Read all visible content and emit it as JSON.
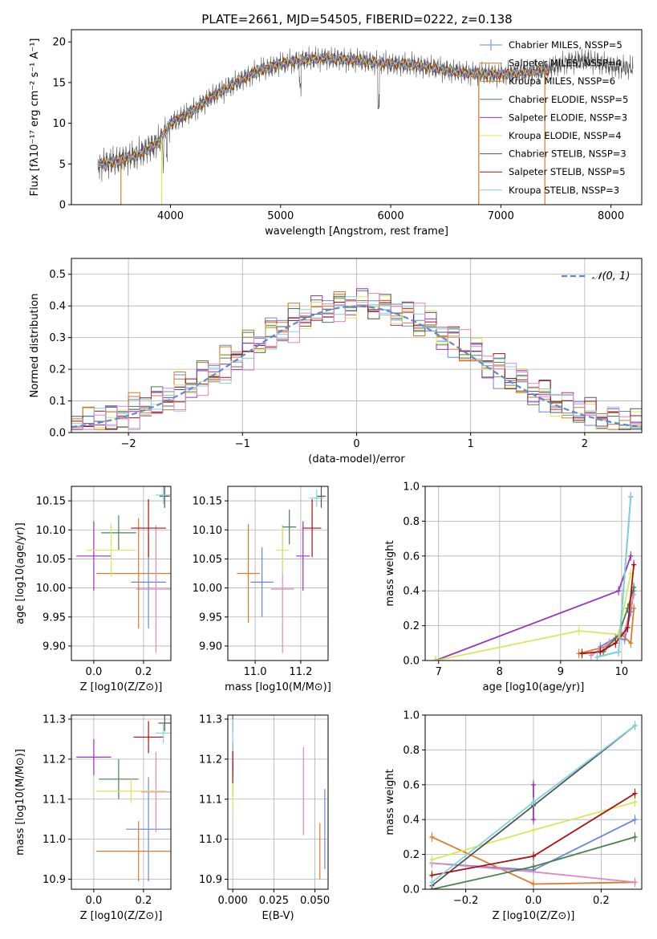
{
  "title": "PLATE=2661, MJD=54505, FIBERID=0222, z=0.138",
  "colors": {
    "Chabrier MILES": "#6688dd",
    "Salpeter MILES": "#e07a2a",
    "Kroupa MILES": "#c07a20",
    "Chabrier ELODIE": "#4a8050",
    "Salpeter ELODIE": "#9933bb",
    "Kroupa ELODIE": "#d8e85a",
    "Chabrier STELIB": "#555555",
    "Salpeter STELIB": "#aa1111",
    "Kroupa STELIB": "#7fd4e0",
    "extra_pink": "#e088c0",
    "gauss": "#5b8ad8"
  },
  "chart_data": [
    {
      "type": "line",
      "xlabel": "wavelength [Angstrom, rest frame]",
      "ylabel": "Flux [fλ10⁻¹⁷ erg cm⁻² s⁻¹ A⁻¹]",
      "xlim": [
        3100,
        8280
      ],
      "ylim": [
        0,
        21.5
      ],
      "xticks": [
        "4000",
        "5000",
        "6000",
        "7000",
        "8000"
      ],
      "yticks": [
        "0",
        "5",
        "10",
        "15",
        "20"
      ],
      "legend": [
        "Chabrier MILES, NSSP=5",
        "Salpeter MILES, NSSP=4",
        "Kroupa MILES, NSSP=6",
        "Chabrier ELODIE, NSSP=5",
        "Salpeter ELODIE, NSSP=3",
        "Kroupa ELODIE, NSSP=4",
        "Chabrier STELIB, NSSP=3",
        "Salpeter STELIB, NSSP=5",
        "Kroupa STELIB, NSSP=3"
      ],
      "legend_placement": "upper right",
      "series_envelope": {
        "x": [
          3340,
          3500,
          3700,
          3900,
          4000,
          4200,
          4400,
          4600,
          4800,
          5000,
          5200,
          5400,
          5600,
          5800,
          6000,
          6200,
          6400,
          6600,
          6800,
          7000,
          7200,
          7400,
          7600,
          7800,
          8000,
          8200
        ],
        "y": [
          4.9,
          5.3,
          6.1,
          7.8,
          10.0,
          11.5,
          13.5,
          15.0,
          16.5,
          17.3,
          17.8,
          18.0,
          17.8,
          17.6,
          17.3,
          17.2,
          16.8,
          16.3,
          16.1,
          16.0,
          16.2,
          16.5,
          17.5,
          17.8,
          17.0,
          16.8
        ]
      }
    },
    {
      "type": "bar",
      "xlabel": "(data-model)/error",
      "ylabel": "Normed distribution",
      "xlim": [
        -2.5,
        2.5
      ],
      "ylim": [
        0,
        0.55
      ],
      "xticks": [
        "−2",
        "−1",
        "0",
        "1",
        "2"
      ],
      "yticks": [
        "0.0",
        "0.1",
        "0.2",
        "0.3",
        "0.4",
        "0.5"
      ],
      "legend": [
        "𝒩(0, 1)"
      ],
      "grid": true
    },
    {
      "type": "scatter",
      "xlabel": "Z [log10(Z/Z⊙)]",
      "ylabel": "age  [log10(age/yr)]",
      "xlim": [
        -0.09,
        0.31
      ],
      "ylim": [
        9.875,
        10.175
      ],
      "xticks": [
        "0.0",
        "0.2"
      ],
      "yticks": [
        "9.90",
        "9.95",
        "10.00",
        "10.05",
        "10.10",
        "10.15"
      ],
      "points": [
        {
          "c": "#6688dd",
          "x": 0.22,
          "y": 10.01,
          "xe": 0.07,
          "ye": 0.08
        },
        {
          "c": "#e07a2a",
          "x": 0.18,
          "y": 10.025,
          "xe": 0.17,
          "ye": 0.095
        },
        {
          "c": "#e088c0",
          "x": 0.25,
          "y": 9.998,
          "xe": 0.08,
          "ye": 0.11
        },
        {
          "c": "#4a8050",
          "x": 0.1,
          "y": 10.095,
          "xe": 0.07,
          "ye": 0.03
        },
        {
          "c": "#9933bb",
          "x": 0.0,
          "y": 10.055,
          "xe": 0.07,
          "ye": 0.06
        },
        {
          "c": "#d8e85a",
          "x": 0.07,
          "y": 10.065,
          "xe": 0.1,
          "ye": 0.045
        },
        {
          "c": "#555555",
          "x": 0.285,
          "y": 10.158,
          "xe": 0.02,
          "ye": 0.02
        },
        {
          "c": "#aa1111",
          "x": 0.22,
          "y": 10.103,
          "xe": 0.07,
          "ye": 0.05
        },
        {
          "c": "#7fd4e0",
          "x": 0.28,
          "y": 10.16,
          "xe": 0.03,
          "ye": 0.015
        }
      ],
      "grid": true
    },
    {
      "type": "scatter",
      "xlabel": "mass [log10(M/M⊙)]",
      "ylabel": "",
      "xlim": [
        10.88,
        11.32
      ],
      "ylim": [
        9.875,
        10.175
      ],
      "xticks": [
        "11.0",
        "11.2"
      ],
      "yticks": [
        "9.90",
        "9.95",
        "10.00",
        "10.05",
        "10.10",
        "10.15"
      ],
      "points": [
        {
          "c": "#6688dd",
          "x": 11.03,
          "y": 10.01,
          "xe": 0.05,
          "ye": 0.06
        },
        {
          "c": "#e07a2a",
          "x": 10.97,
          "y": 10.025,
          "xe": 0.05,
          "ye": 0.085
        },
        {
          "c": "#e088c0",
          "x": 11.12,
          "y": 9.998,
          "xe": 0.05,
          "ye": 0.11
        },
        {
          "c": "#4a8050",
          "x": 11.15,
          "y": 10.105,
          "xe": 0.03,
          "ye": 0.03
        },
        {
          "c": "#9933bb",
          "x": 11.21,
          "y": 10.055,
          "xe": 0.03,
          "ye": 0.06
        },
        {
          "c": "#d8e85a",
          "x": 11.12,
          "y": 10.065,
          "xe": 0.03,
          "ye": 0.04
        },
        {
          "c": "#555555",
          "x": 11.29,
          "y": 10.158,
          "xe": 0.02,
          "ye": 0.02
        },
        {
          "c": "#aa1111",
          "x": 11.25,
          "y": 10.103,
          "xe": 0.04,
          "ye": 0.05
        },
        {
          "c": "#7fd4e0",
          "x": 11.27,
          "y": 10.155,
          "xe": 0.03,
          "ye": 0.015
        }
      ],
      "grid": true
    },
    {
      "type": "line",
      "xlabel": "age  [log10(age/yr)]",
      "ylabel": "mass weight",
      "xlim": [
        6.78,
        10.33
      ],
      "ylim": [
        0,
        1.0
      ],
      "xticks": [
        "7",
        "8",
        "9",
        "10"
      ],
      "yticks": [
        "0.0",
        "0.2",
        "0.4",
        "0.6",
        "0.8",
        "1.0"
      ],
      "grid": true,
      "series": [
        {
          "c": "#6688dd",
          "x": [
            9.65,
            9.9,
            10.05,
            10.15,
            10.2
          ],
          "y": [
            0.08,
            0.13,
            0.12,
            0.28,
            0.4
          ]
        },
        {
          "c": "#e07a2a",
          "x": [
            9.3,
            9.75,
            10.0,
            10.15,
            10.2
          ],
          "y": [
            0.04,
            0.08,
            0.15,
            0.1,
            0.3
          ]
        },
        {
          "c": "#e088c0",
          "x": [
            9.5,
            9.8,
            10.05,
            10.2
          ],
          "y": [
            0.03,
            0.1,
            0.16,
            0.38
          ]
        },
        {
          "c": "#4a8050",
          "x": [
            9.7,
            9.95,
            10.1,
            10.2
          ],
          "y": [
            0.05,
            0.15,
            0.3,
            0.42
          ]
        },
        {
          "c": "#9933bb",
          "x": [
            6.95,
            9.95,
            10.15
          ],
          "y": [
            0.0,
            0.4,
            0.6
          ]
        },
        {
          "c": "#d8e85a",
          "x": [
            6.95,
            9.3,
            9.95,
            10.15
          ],
          "y": [
            0.0,
            0.17,
            0.15,
            0.5
          ]
        },
        {
          "c": "#555555",
          "x": [
            9.6,
            9.95,
            10.15
          ],
          "y": [
            0.02,
            0.05,
            0.94
          ]
        },
        {
          "c": "#aa1111",
          "x": [
            9.35,
            9.65,
            9.9,
            10.1,
            10.2
          ],
          "y": [
            0.04,
            0.05,
            0.1,
            0.19,
            0.55
          ]
        },
        {
          "c": "#7fd4e0",
          "x": [
            9.6,
            9.95,
            10.15
          ],
          "y": [
            0.02,
            0.05,
            0.94
          ]
        }
      ]
    },
    {
      "type": "scatter",
      "xlabel": "Z [log10(Z/Z⊙)]",
      "ylabel": "mass [log10(M/M⊙)]",
      "xlim": [
        -0.09,
        0.31
      ],
      "ylim": [
        10.875,
        11.31
      ],
      "xticks": [
        "0.0",
        "0.2"
      ],
      "yticks": [
        "10.9",
        "11.0",
        "11.1",
        "11.2",
        "11.3"
      ],
      "points": [
        {
          "c": "#6688dd",
          "x": 0.22,
          "y": 11.025,
          "xe": 0.09,
          "ye": 0.13
        },
        {
          "c": "#e07a2a",
          "x": 0.18,
          "y": 10.97,
          "xe": 0.17,
          "ye": 0.075
        },
        {
          "c": "#e088c0",
          "x": 0.25,
          "y": 11.118,
          "xe": 0.06,
          "ye": 0.1
        },
        {
          "c": "#4a8050",
          "x": 0.1,
          "y": 11.15,
          "xe": 0.08,
          "ye": 0.05
        },
        {
          "c": "#9933bb",
          "x": 0.0,
          "y": 11.205,
          "xe": 0.07,
          "ye": 0.045
        },
        {
          "c": "#d8e85a",
          "x": 0.15,
          "y": 11.12,
          "xe": 0.14,
          "ye": 0.03
        },
        {
          "c": "#555555",
          "x": 0.285,
          "y": 11.29,
          "xe": 0.025,
          "ye": 0.02
        },
        {
          "c": "#aa1111",
          "x": 0.22,
          "y": 11.255,
          "xe": 0.06,
          "ye": 0.04
        },
        {
          "c": "#7fd4e0",
          "x": 0.28,
          "y": 11.265,
          "xe": 0.03,
          "ye": 0.025
        }
      ],
      "grid": true
    },
    {
      "type": "scatter",
      "xlabel": "E(B-V)",
      "ylabel": "",
      "xlim": [
        -0.003,
        0.058
      ],
      "ylim": [
        10.875,
        11.31
      ],
      "xticks": [
        "0.000",
        "0.025",
        "0.050"
      ],
      "yticks": [
        "10.9",
        "11.0",
        "11.1",
        "11.2",
        "11.3"
      ],
      "points": [
        {
          "c": "#6688dd",
          "x": 0.056,
          "y": 11.025,
          "xe": 0.0,
          "ye": 0.1
        },
        {
          "c": "#e07a2a",
          "x": 0.053,
          "y": 10.97,
          "xe": 0.0,
          "ye": 0.07
        },
        {
          "c": "#e088c0",
          "x": 0.043,
          "y": 11.12,
          "xe": 0.0,
          "ye": 0.11
        },
        {
          "c": "#4a8050",
          "x": 0.0,
          "y": 11.15,
          "xe": 0.0,
          "ye": 0.04
        },
        {
          "c": "#9933bb",
          "x": 0.0,
          "y": 11.205,
          "xe": 0.0,
          "ye": 0.04
        },
        {
          "c": "#d8e85a",
          "x": 0.0,
          "y": 11.12,
          "xe": 0.0,
          "ye": 0.05
        },
        {
          "c": "#555555",
          "x": 0.0,
          "y": 11.29,
          "xe": 0.0,
          "ye": 0.02
        },
        {
          "c": "#aa1111",
          "x": 0.0,
          "y": 11.19,
          "xe": 0.0,
          "ye": 0.05
        },
        {
          "c": "#7fd4e0",
          "x": 0.0,
          "y": 11.26,
          "xe": 0.0,
          "ye": 0.04
        }
      ],
      "grid": true
    },
    {
      "type": "line",
      "xlabel": "Z [log10(Z/Z⊙)]",
      "ylabel": "mass weight",
      "xlim": [
        -0.32,
        0.32
      ],
      "ylim": [
        0,
        1.0
      ],
      "xticks": [
        "−0.2",
        "0.0",
        "0.2"
      ],
      "yticks": [
        "0.0",
        "0.2",
        "0.4",
        "0.6",
        "0.8",
        "1.0"
      ],
      "grid": true,
      "series": [
        {
          "c": "#6688dd",
          "x": [
            -0.3,
            0.0,
            0.3
          ],
          "y": [
            0.15,
            0.11,
            0.4
          ]
        },
        {
          "c": "#e07a2a",
          "x": [
            -0.3,
            0.0,
            0.3
          ],
          "y": [
            0.3,
            0.03,
            0.04
          ]
        },
        {
          "c": "#e088c0",
          "x": [
            -0.3,
            0.0,
            0.3
          ],
          "y": [
            0.15,
            0.1,
            0.04
          ]
        },
        {
          "c": "#4a8050",
          "x": [
            -0.3,
            0.0,
            0.3
          ],
          "y": [
            0.0,
            0.13,
            0.3
          ]
        },
        {
          "c": "#9933bb",
          "x": [
            0.0,
            0.0
          ],
          "y": [
            0.4,
            0.6
          ]
        },
        {
          "c": "#d8e85a",
          "x": [
            -0.3,
            0.0,
            0.3
          ],
          "y": [
            0.17,
            0.34,
            0.5
          ]
        },
        {
          "c": "#555555",
          "x": [
            -0.3,
            0.0,
            0.3
          ],
          "y": [
            0.02,
            0.48,
            0.94
          ]
        },
        {
          "c": "#aa1111",
          "x": [
            -0.3,
            0.0,
            0.3
          ],
          "y": [
            0.08,
            0.19,
            0.55
          ]
        },
        {
          "c": "#7fd4e0",
          "x": [
            -0.3,
            0.0,
            0.3
          ],
          "y": [
            0.04,
            0.5,
            0.94
          ]
        }
      ]
    }
  ]
}
